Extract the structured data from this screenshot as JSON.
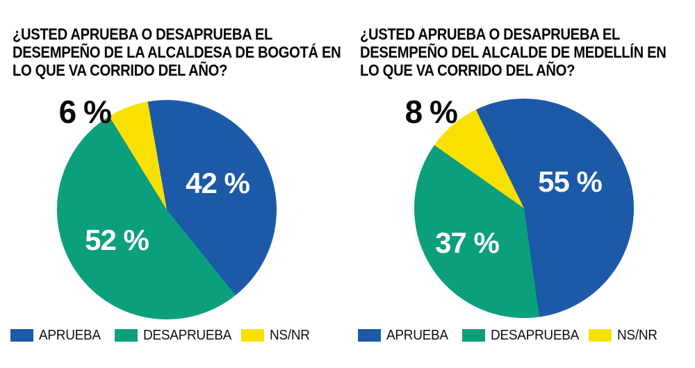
{
  "page": {
    "background": "#ffffff"
  },
  "charts": [
    {
      "name": "bogota",
      "title_lines": [
        "¿USTED APRUEBA O DESAPRUEBA EL",
        "DESEMPEÑO DE LA ALCALDESA DE BOGOTÁ EN",
        "LO QUE VA CORRIDO DEL AÑO?"
      ],
      "value_labels": {
        "aprueba": "42 %",
        "desaprueba": "52 %",
        "nsnr": "6 %"
      },
      "legend": [
        "APRUEBA",
        "DESAPRUEBA",
        "NS/NR"
      ]
    },
    {
      "name": "medellin",
      "title_lines": [
        "¿USTED APRUEBA O DESAPRUEBA EL",
        "DESEMPEÑO DEL ALCALDE DE MEDELLÍN EN",
        "LO QUE VA CORRIDO DEL AÑO?"
      ],
      "value_labels": {
        "aprueba": "55 %",
        "desaprueba": "37 %",
        "nsnr": "8 %"
      },
      "legend": [
        "APRUEBA",
        "DESAPRUEBA",
        "NS/NR"
      ]
    }
  ],
  "chart_data": [
    {
      "type": "pie",
      "title": "¿USTED APRUEBA O DESAPRUEBA EL DESEMPEÑO DE LA ALCALDESA DE BOGOTÁ EN LO QUE VA CORRIDO DEL AÑO?",
      "categories": [
        "APRUEBA",
        "DESAPRUEBA",
        "NS/NR"
      ],
      "values": [
        42,
        52,
        6
      ],
      "colors": [
        "#1c5aa8",
        "#0c9f7d",
        "#f8e100"
      ],
      "start_angle_deg": -10,
      "legend_position": "bottom",
      "value_label_format": "{value} %",
      "value_label_colors": [
        "#ffffff",
        "#ffffff",
        "#0a0a0a"
      ],
      "nsnr_label_outside": true
    },
    {
      "type": "pie",
      "title": "¿USTED APRUEBA O DESAPRUEBA EL DESEMPEÑO DEL ALCALDE DE MEDELLÍN EN LO QUE VA CORRIDO DEL AÑO?",
      "categories": [
        "APRUEBA",
        "DESAPRUEBA",
        "NS/NR"
      ],
      "values": [
        55,
        37,
        8
      ],
      "colors": [
        "#1c5aa8",
        "#0c9f7d",
        "#f8e100"
      ],
      "start_angle_deg": -26,
      "legend_position": "bottom",
      "value_label_format": "{value} %",
      "value_label_colors": [
        "#ffffff",
        "#ffffff",
        "#0a0a0a"
      ],
      "nsnr_label_outside": true
    }
  ]
}
